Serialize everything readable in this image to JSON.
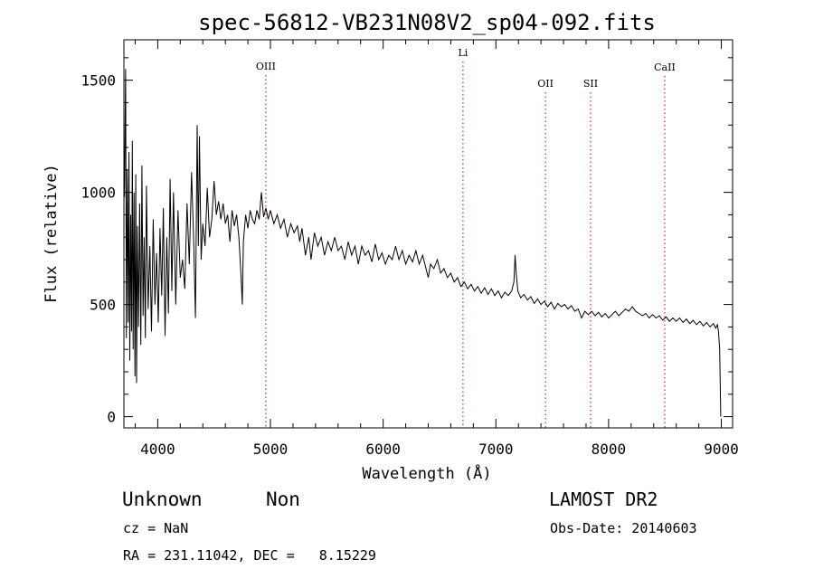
{
  "chart_data": {
    "type": "line",
    "title": "spec-56812-VB231N08V2_sp04-092.fits",
    "xlabel": "Wavelength (Å)",
    "ylabel": "Flux (relative)",
    "xlim": [
      3700,
      9100
    ],
    "ylim": [
      -50,
      1680
    ],
    "x_ticks": [
      4000,
      5000,
      6000,
      7000,
      8000,
      9000
    ],
    "y_ticks": [
      0,
      500,
      1000,
      1500
    ],
    "x_tick_labels": [
      "4000",
      "5000",
      "6000",
      "7000",
      "8000",
      "9000"
    ],
    "y_tick_labels": [
      "0",
      "500",
      "1000",
      "1500"
    ],
    "grid": false,
    "line_color": "#000000",
    "marker_line_color": "#c80000",
    "spectral_lines": [
      {
        "label": "OIII",
        "wavelength": 4959
      },
      {
        "label": "Li",
        "wavelength": 6708
      },
      {
        "label": "OII",
        "wavelength": 7440
      },
      {
        "label": "SII",
        "wavelength": 7840
      },
      {
        "label": "CaII",
        "wavelength": 8498
      }
    ],
    "series": [
      {
        "points": [
          [
            3705,
            980
          ],
          [
            3715,
            1550
          ],
          [
            3722,
            350
          ],
          [
            3730,
            1100
          ],
          [
            3738,
            420
          ],
          [
            3745,
            1180
          ],
          [
            3752,
            250
          ],
          [
            3760,
            900
          ],
          [
            3768,
            380
          ],
          [
            3775,
            1230
          ],
          [
            3782,
            300
          ],
          [
            3790,
            1000
          ],
          [
            3798,
            180
          ],
          [
            3805,
            1080
          ],
          [
            3812,
            150
          ],
          [
            3820,
            850
          ],
          [
            3830,
            400
          ],
          [
            3840,
            950
          ],
          [
            3850,
            320
          ],
          [
            3860,
            1120
          ],
          [
            3870,
            450
          ],
          [
            3880,
            800
          ],
          [
            3890,
            350
          ],
          [
            3900,
            1030
          ],
          [
            3915,
            480
          ],
          [
            3930,
            760
          ],
          [
            3945,
            380
          ],
          [
            3960,
            880
          ],
          [
            3975,
            500
          ],
          [
            3990,
            730
          ],
          [
            4005,
            420
          ],
          [
            4020,
            840
          ],
          [
            4035,
            540
          ],
          [
            4050,
            930
          ],
          [
            4065,
            360
          ],
          [
            4080,
            800
          ],
          [
            4095,
            460
          ],
          [
            4110,
            1060
          ],
          [
            4125,
            560
          ],
          [
            4140,
            1000
          ],
          [
            4160,
            500
          ],
          [
            4180,
            920
          ],
          [
            4200,
            620
          ],
          [
            4220,
            700
          ],
          [
            4240,
            570
          ],
          [
            4260,
            950
          ],
          [
            4280,
            680
          ],
          [
            4300,
            1090
          ],
          [
            4320,
            760
          ],
          [
            4335,
            440
          ],
          [
            4350,
            1300
          ],
          [
            4360,
            760
          ],
          [
            4370,
            1250
          ],
          [
            4385,
            700
          ],
          [
            4400,
            860
          ],
          [
            4420,
            760
          ],
          [
            4440,
            1020
          ],
          [
            4460,
            800
          ],
          [
            4480,
            880
          ],
          [
            4500,
            1050
          ],
          [
            4520,
            900
          ],
          [
            4540,
            960
          ],
          [
            4560,
            880
          ],
          [
            4580,
            950
          ],
          [
            4600,
            860
          ],
          [
            4620,
            900
          ],
          [
            4640,
            780
          ],
          [
            4660,
            920
          ],
          [
            4680,
            850
          ],
          [
            4700,
            900
          ],
          [
            4720,
            800
          ],
          [
            4740,
            620
          ],
          [
            4750,
            500
          ],
          [
            4760,
            780
          ],
          [
            4780,
            900
          ],
          [
            4800,
            840
          ],
          [
            4820,
            920
          ],
          [
            4840,
            880
          ],
          [
            4860,
            860
          ],
          [
            4880,
            920
          ],
          [
            4900,
            880
          ],
          [
            4920,
            1000
          ],
          [
            4940,
            890
          ],
          [
            4960,
            930
          ],
          [
            4980,
            880
          ],
          [
            5000,
            920
          ],
          [
            5030,
            860
          ],
          [
            5060,
            900
          ],
          [
            5090,
            840
          ],
          [
            5120,
            880
          ],
          [
            5150,
            800
          ],
          [
            5180,
            860
          ],
          [
            5210,
            820
          ],
          [
            5240,
            850
          ],
          [
            5260,
            780
          ],
          [
            5280,
            840
          ],
          [
            5310,
            720
          ],
          [
            5340,
            800
          ],
          [
            5360,
            700
          ],
          [
            5390,
            820
          ],
          [
            5420,
            760
          ],
          [
            5450,
            800
          ],
          [
            5480,
            720
          ],
          [
            5510,
            780
          ],
          [
            5540,
            740
          ],
          [
            5570,
            800
          ],
          [
            5600,
            740
          ],
          [
            5630,
            760
          ],
          [
            5660,
            700
          ],
          [
            5690,
            780
          ],
          [
            5720,
            720
          ],
          [
            5750,
            760
          ],
          [
            5780,
            680
          ],
          [
            5810,
            760
          ],
          [
            5840,
            720
          ],
          [
            5870,
            740
          ],
          [
            5900,
            690
          ],
          [
            5930,
            770
          ],
          [
            5960,
            700
          ],
          [
            5990,
            730
          ],
          [
            6020,
            680
          ],
          [
            6050,
            720
          ],
          [
            6080,
            700
          ],
          [
            6110,
            760
          ],
          [
            6140,
            700
          ],
          [
            6170,
            740
          ],
          [
            6200,
            680
          ],
          [
            6230,
            720
          ],
          [
            6260,
            690
          ],
          [
            6290,
            740
          ],
          [
            6320,
            680
          ],
          [
            6350,
            720
          ],
          [
            6380,
            660
          ],
          [
            6400,
            620
          ],
          [
            6420,
            680
          ],
          [
            6450,
            660
          ],
          [
            6480,
            700
          ],
          [
            6510,
            640
          ],
          [
            6540,
            660
          ],
          [
            6570,
            620
          ],
          [
            6600,
            640
          ],
          [
            6630,
            600
          ],
          [
            6660,
            620
          ],
          [
            6690,
            580
          ],
          [
            6720,
            600
          ],
          [
            6750,
            570
          ],
          [
            6780,
            590
          ],
          [
            6810,
            560
          ],
          [
            6840,
            580
          ],
          [
            6870,
            550
          ],
          [
            6900,
            575
          ],
          [
            6930,
            545
          ],
          [
            6960,
            570
          ],
          [
            6990,
            540
          ],
          [
            7020,
            560
          ],
          [
            7050,
            530
          ],
          [
            7080,
            555
          ],
          [
            7110,
            540
          ],
          [
            7140,
            560
          ],
          [
            7160,
            600
          ],
          [
            7170,
            720
          ],
          [
            7180,
            640
          ],
          [
            7195,
            560
          ],
          [
            7220,
            530
          ],
          [
            7250,
            545
          ],
          [
            7280,
            520
          ],
          [
            7310,
            535
          ],
          [
            7340,
            505
          ],
          [
            7370,
            525
          ],
          [
            7400,
            500
          ],
          [
            7430,
            515
          ],
          [
            7460,
            490
          ],
          [
            7490,
            510
          ],
          [
            7520,
            480
          ],
          [
            7550,
            505
          ],
          [
            7580,
            490
          ],
          [
            7610,
            500
          ],
          [
            7640,
            480
          ],
          [
            7670,
            495
          ],
          [
            7700,
            470
          ],
          [
            7730,
            480
          ],
          [
            7760,
            440
          ],
          [
            7790,
            470
          ],
          [
            7820,
            455
          ],
          [
            7850,
            470
          ],
          [
            7880,
            450
          ],
          [
            7910,
            465
          ],
          [
            7940,
            445
          ],
          [
            7970,
            460
          ],
          [
            8000,
            440
          ],
          [
            8030,
            455
          ],
          [
            8060,
            470
          ],
          [
            8090,
            450
          ],
          [
            8120,
            465
          ],
          [
            8150,
            480
          ],
          [
            8180,
            470
          ],
          [
            8210,
            490
          ],
          [
            8240,
            470
          ],
          [
            8270,
            460
          ],
          [
            8300,
            450
          ],
          [
            8330,
            460
          ],
          [
            8360,
            440
          ],
          [
            8390,
            455
          ],
          [
            8420,
            440
          ],
          [
            8450,
            450
          ],
          [
            8480,
            430
          ],
          [
            8510,
            445
          ],
          [
            8540,
            425
          ],
          [
            8570,
            440
          ],
          [
            8600,
            425
          ],
          [
            8630,
            440
          ],
          [
            8660,
            420
          ],
          [
            8690,
            435
          ],
          [
            8720,
            415
          ],
          [
            8750,
            430
          ],
          [
            8780,
            410
          ],
          [
            8810,
            425
          ],
          [
            8840,
            405
          ],
          [
            8870,
            420
          ],
          [
            8900,
            400
          ],
          [
            8930,
            415
          ],
          [
            8950,
            395
          ],
          [
            8965,
            410
          ],
          [
            8975,
            380
          ],
          [
            8985,
            300
          ],
          [
            8995,
            0
          ]
        ]
      }
    ]
  },
  "footer": {
    "object_class": "Unknown",
    "subclass": "Non",
    "redshift": "cz = NaN",
    "coords": "RA = 231.11042, DEC =   8.15229",
    "survey": "LAMOST DR2",
    "obs_date": "Obs-Date: 20140603"
  }
}
